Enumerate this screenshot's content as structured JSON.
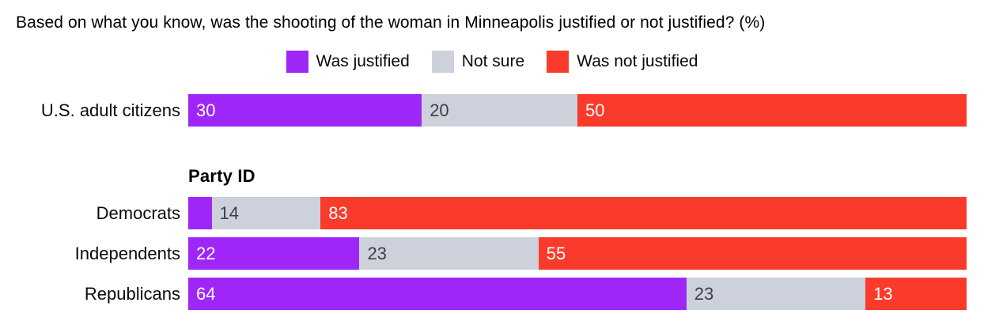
{
  "title": "Based on what you know, was the shooting of the woman in Minneapolis justified or not justified? (%)",
  "colors": {
    "background": "#ffffff",
    "text": "#000000",
    "was_justified": "#9E27F8",
    "not_sure": "#CDD1DB",
    "was_not_justified": "#FA3B2B",
    "value_text_on_dark": "#FFFFFF",
    "value_text_on_light": "#3C4046"
  },
  "legend": {
    "items": [
      {
        "label": "Was justified",
        "color": "#9E27F8"
      },
      {
        "label": "Not sure",
        "color": "#CDD1DB"
      },
      {
        "label": "Was not justified",
        "color": "#FA3B2B"
      }
    ]
  },
  "chart_data": {
    "type": "bar",
    "orientation": "horizontal",
    "stacked": true,
    "title": "Based on what you know, was the shooting of the woman in Minneapolis justified or not justified? (%)",
    "unit": "%",
    "xlim": [
      0,
      100
    ],
    "grid": false,
    "legend_position": "top-center",
    "series_labels": [
      "Was justified",
      "Not sure",
      "Was not justified"
    ],
    "series_colors": [
      "#9E27F8",
      "#CDD1DB",
      "#FA3B2B"
    ],
    "value_label_colors": [
      "#FFFFFF",
      "#3C4046",
      "#FFFFFF"
    ],
    "groups": [
      {
        "section_header": "",
        "rows": [
          {
            "label": "U.S. adult citizens",
            "values": [
              30,
              20,
              50
            ],
            "value_labels": [
              "30",
              "20",
              "50"
            ]
          }
        ]
      },
      {
        "section_header": "Party ID",
        "rows": [
          {
            "label": "Democrats",
            "values": [
              3,
              14,
              83
            ],
            "value_labels": [
              "",
              "14",
              "83"
            ]
          },
          {
            "label": "Independents",
            "values": [
              22,
              23,
              55
            ],
            "value_labels": [
              "22",
              "23",
              "55"
            ]
          },
          {
            "label": "Republicans",
            "values": [
              64,
              23,
              13
            ],
            "value_labels": [
              "64",
              "23",
              "13"
            ]
          }
        ]
      }
    ]
  }
}
